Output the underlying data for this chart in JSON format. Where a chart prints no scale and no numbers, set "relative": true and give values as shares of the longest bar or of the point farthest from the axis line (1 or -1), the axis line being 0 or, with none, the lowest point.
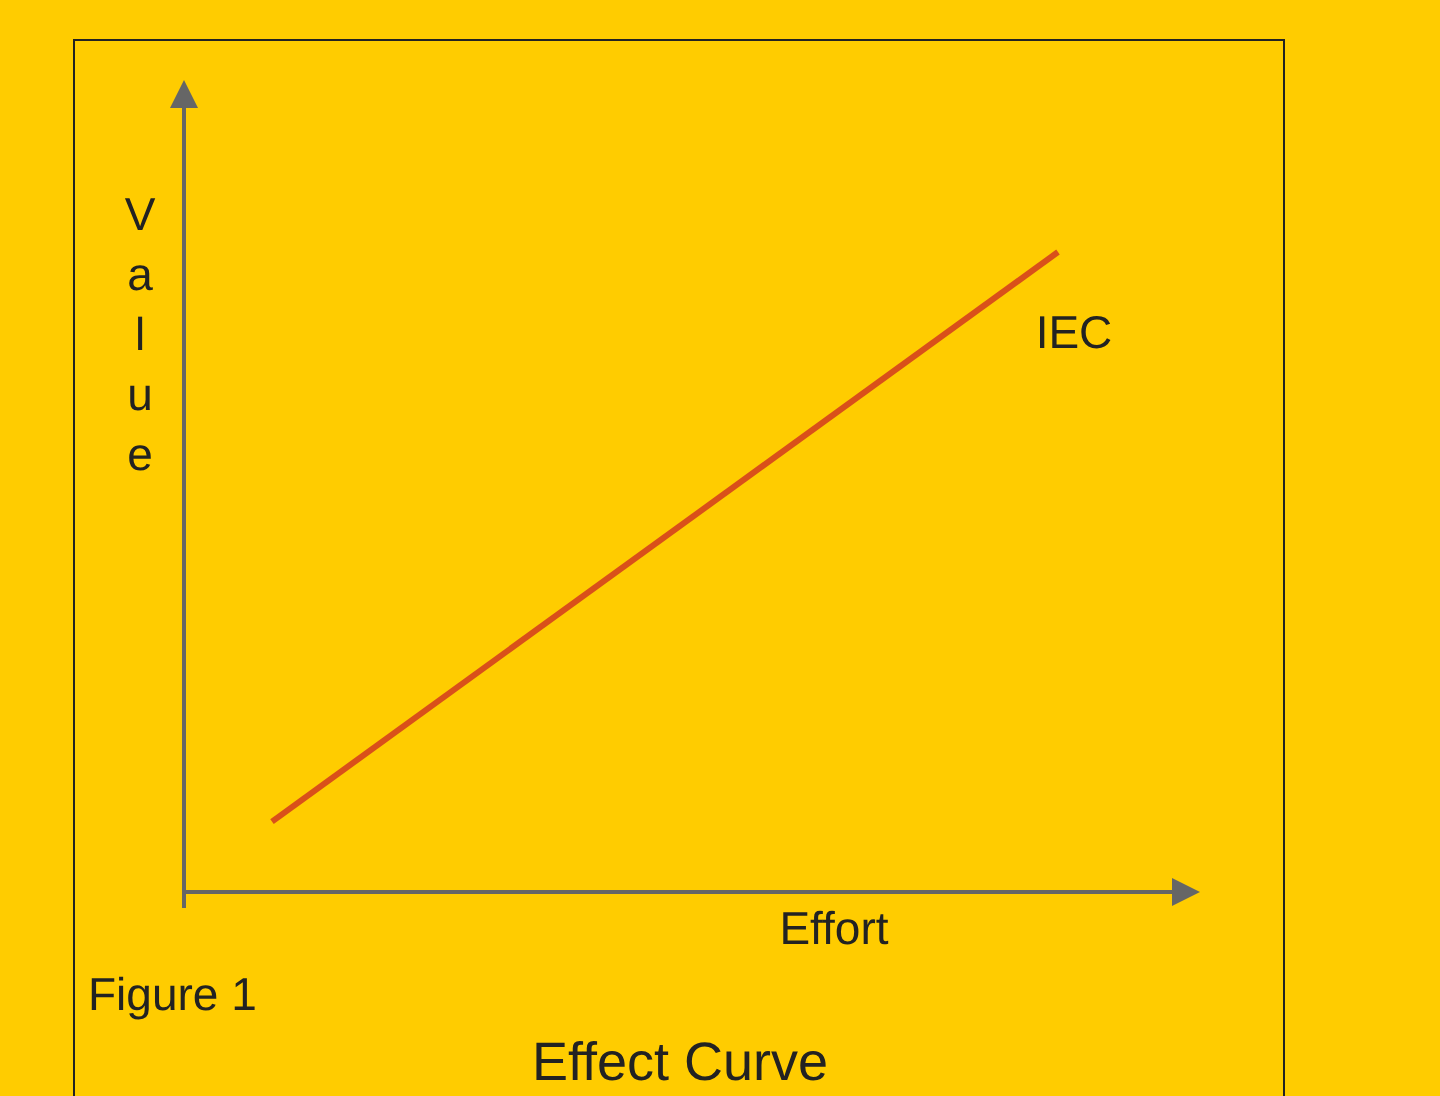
{
  "chart_data": {
    "type": "line",
    "title": "Effect Curve",
    "xlabel": "Effort",
    "ylabel": "Value",
    "relative": true,
    "categories": [
      null,
      null
    ],
    "series": [
      {
        "name": "IEC",
        "color": "#d9501a",
        "values": [
          0.11,
          1
        ]
      }
    ],
    "annotations": [
      "Figure 1"
    ],
    "legend": false,
    "line_style": "solid"
  }
}
